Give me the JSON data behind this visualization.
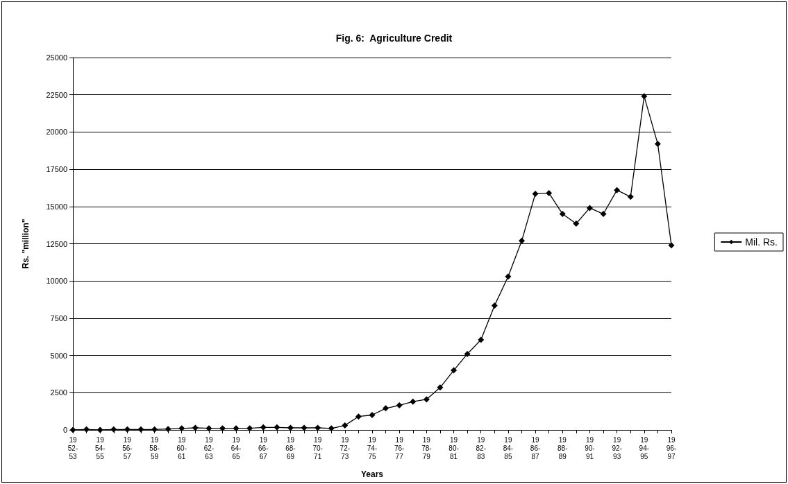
{
  "chart_data": {
    "type": "line",
    "title": "Fig. 6:  Agriculture Credit",
    "xlabel": "Years",
    "ylabel": "Rs. \"million\"",
    "categories": [
      "1952-53",
      null,
      "1954-55",
      null,
      "1956-57",
      null,
      "1958-59",
      null,
      "1960-61",
      null,
      "1962-63",
      null,
      "1964-65",
      null,
      "1966-67",
      null,
      "1968-69",
      null,
      "1970-71",
      null,
      "1972-73",
      null,
      "1974-75",
      null,
      "1976-77",
      null,
      "1978-79",
      null,
      "1980-81",
      null,
      "1982-83",
      null,
      "1984-85",
      null,
      "1986-87",
      null,
      "1988-89",
      null,
      "1990-91",
      null,
      "1992-93",
      null,
      "1994-95",
      null,
      "1996-97"
    ],
    "series": [
      {
        "name": "Mil. Rs.",
        "color": "#000000",
        "values": [
          0,
          30,
          0,
          30,
          30,
          30,
          30,
          60,
          100,
          140,
          110,
          110,
          110,
          110,
          170,
          170,
          140,
          140,
          140,
          100,
          300,
          900,
          1000,
          1450,
          1650,
          1900,
          2050,
          2850,
          4000,
          5100,
          6050,
          8350,
          10300,
          12700,
          15850,
          15900,
          14500,
          13850,
          14900,
          14500,
          16100,
          15650,
          22400,
          19200,
          12400
        ]
      }
    ],
    "ylim": [
      0,
      25000
    ],
    "yticks": [
      0,
      2500,
      5000,
      7500,
      10000,
      12500,
      15000,
      17500,
      20000,
      22500,
      25000
    ],
    "grid": "y",
    "legend": "right",
    "marker": "diamond",
    "line_style": "solid"
  }
}
